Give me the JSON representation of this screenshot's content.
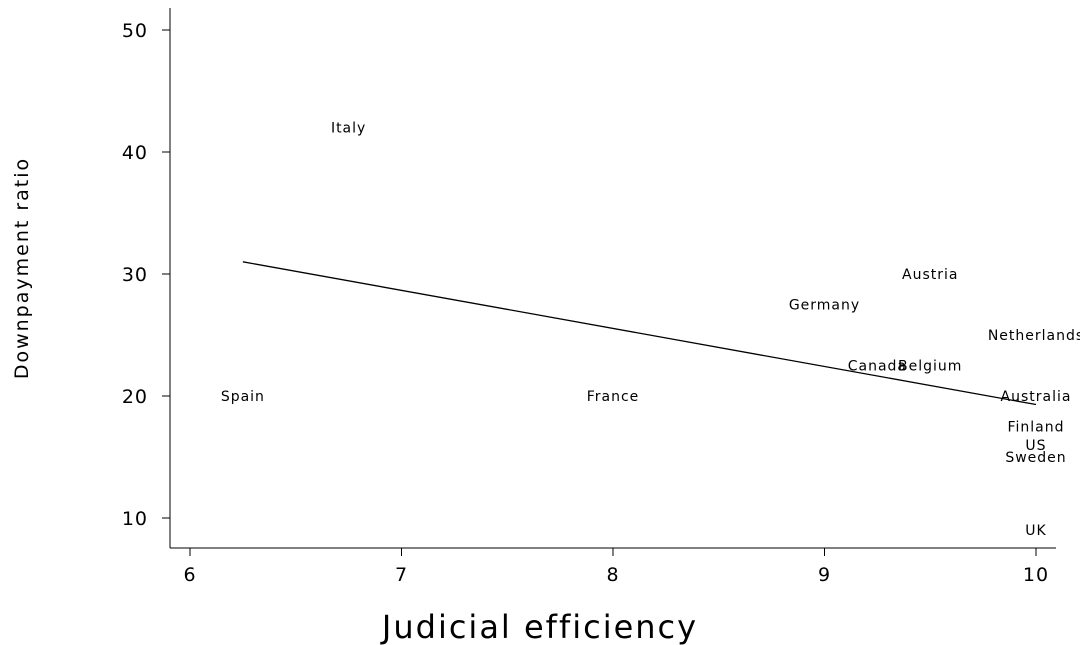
{
  "chart_data": {
    "type": "scatter",
    "title": "",
    "xlabel": "Judicial efficiency",
    "ylabel": "Downpayment ratio",
    "xlim": [
      5.9,
      10.1
    ],
    "ylim": [
      7.5,
      52
    ],
    "xticks": [
      6,
      7,
      8,
      9,
      10
    ],
    "yticks": [
      10,
      20,
      30,
      40,
      50
    ],
    "grid": false,
    "legend": "none",
    "points": [
      {
        "label": "Italy",
        "x": 6.75,
        "y": 42
      },
      {
        "label": "Spain",
        "x": 6.25,
        "y": 20
      },
      {
        "label": "France",
        "x": 8.0,
        "y": 20
      },
      {
        "label": "Germany",
        "x": 9.0,
        "y": 27.5
      },
      {
        "label": "Austria",
        "x": 9.5,
        "y": 30
      },
      {
        "label": "Netherlands",
        "x": 10.0,
        "y": 25
      },
      {
        "label": "Canada",
        "x": 9.25,
        "y": 22.5
      },
      {
        "label": "Belgium",
        "x": 9.5,
        "y": 22.5
      },
      {
        "label": "Australia",
        "x": 10.0,
        "y": 20
      },
      {
        "label": "Finland",
        "x": 10.0,
        "y": 17.5
      },
      {
        "label": "US",
        "x": 10.0,
        "y": 16
      },
      {
        "label": "Sweden",
        "x": 10.0,
        "y": 15
      },
      {
        "label": "UK",
        "x": 10.0,
        "y": 9
      }
    ],
    "fit_line": {
      "x": [
        6.25,
        10.0
      ],
      "y": [
        31.0,
        19.3
      ]
    }
  }
}
